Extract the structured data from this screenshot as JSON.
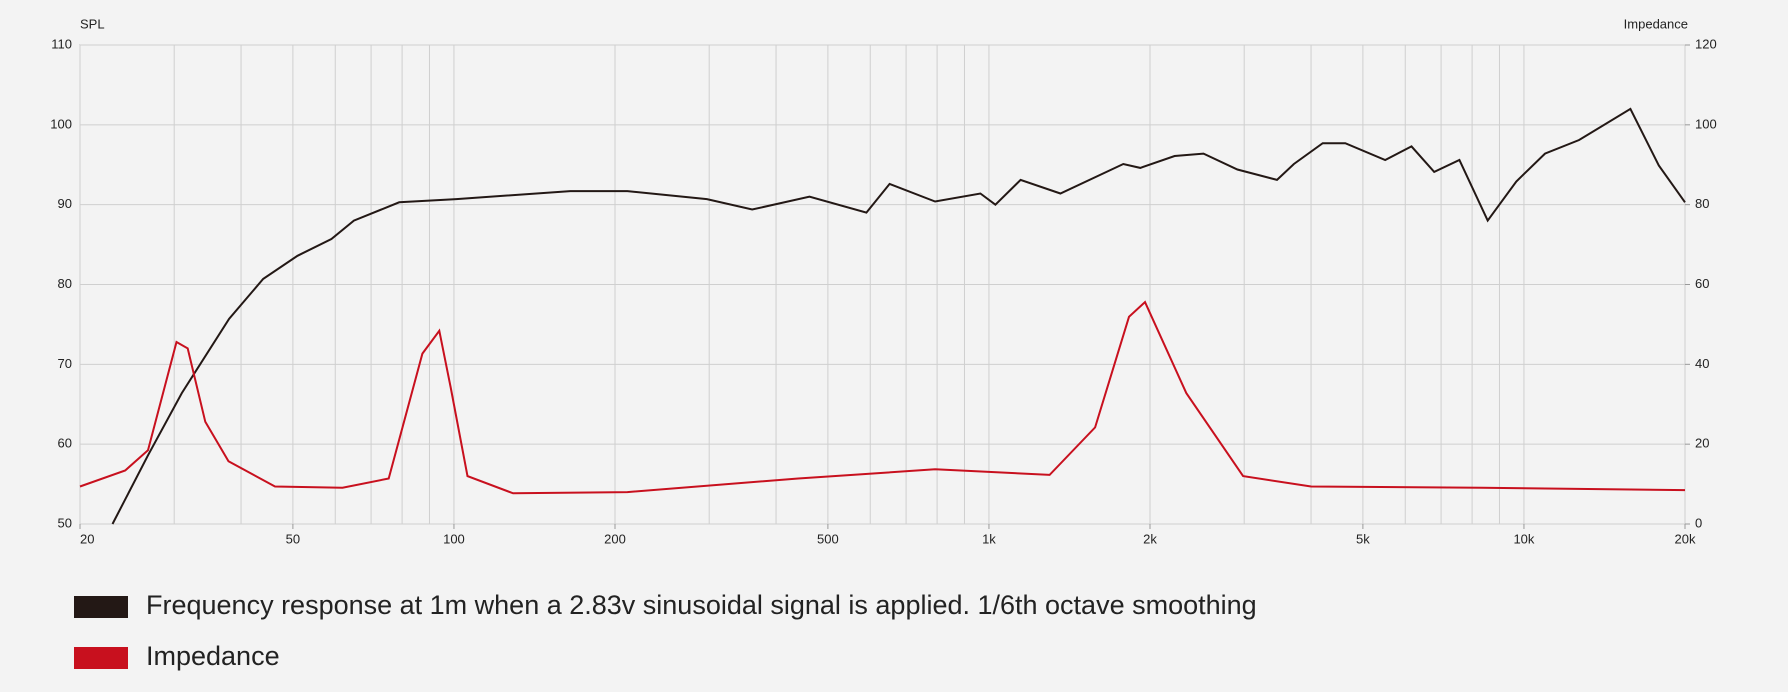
{
  "chart_data": {
    "type": "line",
    "y_label": "SPL",
    "y2_label": "Impedance",
    "xscale": "log",
    "grid": true,
    "xlim": [
      20,
      20000
    ],
    "xticks": [
      20,
      50,
      100,
      200,
      500,
      {
        "value": 1000,
        "label": "1k"
      },
      {
        "value": 2000,
        "label": "2k"
      },
      {
        "value": 5000,
        "label": "5k"
      },
      {
        "value": 10000,
        "label": "10k"
      },
      {
        "value": 20000,
        "label": "20k"
      }
    ],
    "xgrid": [
      20,
      30,
      40,
      50,
      60,
      70,
      80,
      90,
      100,
      200,
      300,
      400,
      500,
      600,
      700,
      800,
      900,
      1000,
      2000,
      3000,
      4000,
      5000,
      6000,
      7000,
      8000,
      9000,
      10000,
      20000
    ],
    "ylim": [
      50,
      110
    ],
    "yticks": [
      50,
      60,
      70,
      80,
      90,
      100,
      110
    ],
    "y2lim": [
      0,
      120
    ],
    "y2ticks": [
      0,
      20,
      40,
      60,
      80,
      100,
      120
    ],
    "series": [
      {
        "name": "Frequency response at 1m when a 2.83v sinusoidal signal is applied. 1/6th octave smoothing",
        "color": "#231815",
        "x": [
          23,
          26.8,
          31,
          38,
          44,
          51,
          59,
          65,
          79,
          101,
          165,
          211,
          297,
          361,
          462,
          590,
          652,
          793,
          964,
          1028,
          1146,
          1360,
          1783,
          1918,
          2223,
          2518,
          2913,
          3455,
          3716,
          4205,
          4636,
          5503,
          6164,
          6797,
          7573,
          8555,
          9676,
          10946,
          12679,
          15812,
          17868,
          20000
        ],
        "values": [
          50,
          58.6,
          66.4,
          75.7,
          80.7,
          83.6,
          85.7,
          88,
          90.3,
          90.7,
          91.7,
          91.7,
          90.7,
          89.4,
          91,
          89,
          92.6,
          90.4,
          91.4,
          90,
          93.1,
          91.4,
          95.1,
          94.6,
          96.1,
          96.4,
          94.4,
          93.1,
          95.1,
          97.7,
          97.7,
          95.6,
          97.3,
          94.1,
          95.6,
          88,
          92.9,
          96.4,
          98.1,
          102,
          94.9,
          90.3
        ]
      },
      {
        "name": "Impedance",
        "color": "#c8101e",
        "axis": "y2",
        "x": [
          20,
          24.3,
          26.8,
          30.3,
          31.8,
          34.3,
          37.9,
          46.3,
          61.9,
          75.5,
          87.3,
          93.9,
          98.6,
          106,
          129,
          211,
          440,
          793,
          1298,
          1579,
          1827,
          1957,
          2338,
          2986,
          4000,
          8345,
          20000
        ],
        "values": [
          9.4,
          13.4,
          18.5,
          45.6,
          44,
          25.6,
          15.7,
          9.4,
          9.1,
          11.4,
          42.7,
          48.4,
          34.2,
          12,
          7.7,
          8,
          11.4,
          13.7,
          12.3,
          24.2,
          51.9,
          55.6,
          32.8,
          12,
          9.4,
          9.1,
          8.5
        ]
      }
    ]
  }
}
